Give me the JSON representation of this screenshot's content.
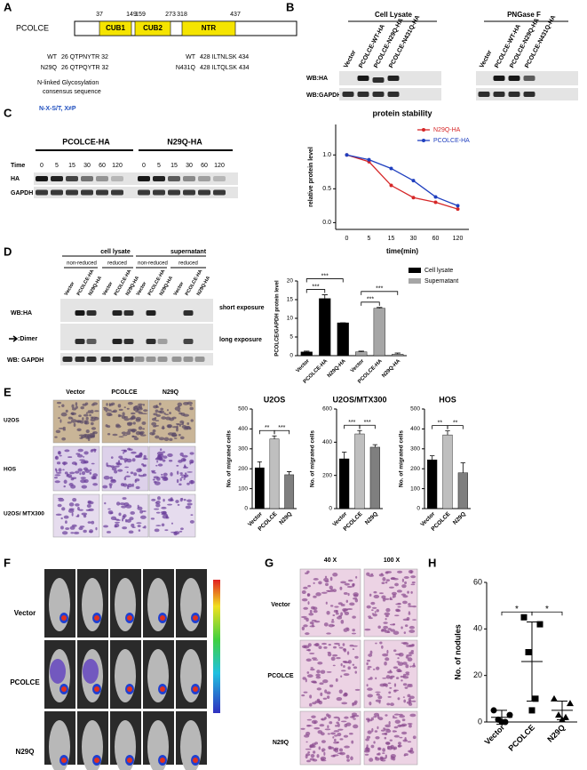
{
  "figure": {
    "panels": [
      "A",
      "B",
      "C",
      "D",
      "E",
      "F",
      "G",
      "H"
    ],
    "A": {
      "protein": "PCOLCE",
      "positions": [
        37,
        149,
        159,
        273,
        318,
        437
      ],
      "domains": [
        "CUB1",
        "CUB2",
        "NTR"
      ],
      "sequences": [
        {
          "label": "WT",
          "text": "26 QTPNYTR 32"
        },
        {
          "label": "N29Q",
          "text": "26 QTPQYTR 32"
        },
        {
          "label": "WT",
          "text": "428 ILTNLSK 434"
        },
        {
          "label": "N431Q",
          "text": "428 ILTQLSK 434"
        }
      ],
      "note": [
        "N-linked Glycosylation",
        "consensus sequence"
      ],
      "motif": "N-X-S/T, X≠P"
    },
    "B": {
      "groups": [
        "Cell Lysate",
        "PNGase F"
      ],
      "lanes": [
        "Vector",
        "PCOLCE-WT-HA",
        "PCOLCE-N29Q-HA",
        "PCOLCE-N431Q-HA",
        "Vector",
        "PCOLCE-WT-HA",
        "PCOLCE-N29Q-HA",
        "PCOLCE-N431Q-HA"
      ],
      "rows": [
        "WB:HA",
        "WB:GAPDH"
      ]
    },
    "C": {
      "groups": [
        "PCOLCE-HA",
        "N29Q-HA"
      ],
      "time_label": "Time",
      "times": [
        0,
        5,
        15,
        30,
        60,
        120,
        0,
        5,
        15,
        30,
        60,
        120
      ],
      "rows": [
        "HA",
        "GAPDH"
      ]
    },
    "D": {
      "groups": [
        "cell lysate",
        "supernatant"
      ],
      "conditions": [
        "non-reduced",
        "reduced",
        "non-reduced",
        "reduced"
      ],
      "lanes": [
        "Vector",
        "PCOLCE-HA",
        "N29Q-HA",
        "Vector",
        "PCOLCE-HA",
        "N29Q-HA",
        "Vector",
        "PCOLCE-HA",
        "N29Q-HA",
        "Vector",
        "PCOLCE-HA",
        "N29Q-HA"
      ],
      "rows": [
        "WB:HA",
        ":Dimer",
        "WB: GAPDH"
      ],
      "exposures": [
        "short exposure",
        "long exposure"
      ]
    },
    "E": {
      "columns": [
        "Vector",
        "PCOLCE",
        "N29Q"
      ],
      "rows": [
        "U2OS",
        "HOS",
        "U2OS/ MTX300"
      ]
    },
    "F": {
      "rows": [
        "Vector",
        "PCOLCE",
        "N29Q"
      ]
    },
    "G": {
      "columns": [
        "40 X",
        "100 X"
      ],
      "rows": [
        "Vector",
        "PCOLCE",
        "N29Q"
      ]
    }
  },
  "chart_data": [
    {
      "type": "line",
      "title": "protein stability",
      "xlabel": "time(min)",
      "ylabel": "relative protein level",
      "categories": [
        "0",
        "5",
        "15",
        "30",
        "60",
        "120"
      ],
      "series": [
        {
          "name": "N29Q-HA",
          "color": "#d62728",
          "values": [
            1.0,
            0.9,
            0.55,
            0.37,
            0.3,
            0.2
          ]
        },
        {
          "name": "PCOLCE-HA",
          "color": "#1f3fbf",
          "values": [
            1.0,
            0.93,
            0.8,
            0.62,
            0.38,
            0.25
          ]
        }
      ],
      "ylim": [
        -0.1,
        1.45
      ],
      "yticks": [
        {
          "value": 0,
          "label": "0.0"
        },
        {
          "value": 0.5,
          "label": "0.5"
        },
        {
          "value": 1,
          "label": "1.0"
        }
      ],
      "legend": "upper right"
    },
    {
      "type": "bar",
      "ylabel": "PCOLCE/GAPDH protein level",
      "categories": [
        "Vector",
        "PCOLCE-HA",
        "N29Q-HA",
        "Vector",
        "PCOLCE-HA",
        "N29Q-HA"
      ],
      "series": [
        {
          "name": "Cell lysate",
          "color": "#000000",
          "values": [
            1,
            15.3,
            8.8,
            null,
            null,
            null
          ],
          "errors": [
            0.2,
            1.0,
            0,
            null,
            null,
            null
          ]
        },
        {
          "name": "Supernatant",
          "color": "#a6a6a6",
          "values": [
            null,
            null,
            null,
            1,
            12.7,
            0.4
          ],
          "errors": [
            null,
            null,
            null,
            0.2,
            0.2,
            0.3
          ]
        }
      ],
      "ylim": [
        0,
        20
      ],
      "yticks": [
        0,
        5,
        10,
        15,
        20
      ],
      "legend": "right",
      "annotations": [
        {
          "text": "***",
          "between": [
            0,
            1
          ]
        },
        {
          "text": "***",
          "between": [
            0,
            2
          ]
        },
        {
          "text": "***",
          "between": [
            3,
            4
          ]
        },
        {
          "text": "***",
          "between": [
            3,
            5
          ]
        }
      ]
    },
    {
      "type": "bar",
      "title": "U2OS",
      "ylabel": "No. of migrated cells",
      "categories": [
        "Vector",
        "PCOLCE",
        "N29Q"
      ],
      "values": [
        205,
        350,
        170
      ],
      "errors": [
        30,
        15,
        15
      ],
      "colors": [
        "#000000",
        "#bfbfbf",
        "#7f7f7f"
      ],
      "ylim": [
        0,
        500
      ],
      "yticks": [
        0,
        100,
        200,
        300,
        400,
        500
      ],
      "annotations": [
        {
          "text": "**",
          "between": [
            0,
            1
          ]
        },
        {
          "text": "***",
          "between": [
            1,
            2
          ]
        }
      ]
    },
    {
      "type": "bar",
      "title": "U2OS/MTX300",
      "ylabel": "No. of migrated cells",
      "categories": [
        "Vector",
        "PCOLCE",
        "N29Q"
      ],
      "values": [
        300,
        450,
        370
      ],
      "errors": [
        40,
        20,
        15
      ],
      "colors": [
        "#000000",
        "#bfbfbf",
        "#7f7f7f"
      ],
      "ylim": [
        0,
        600
      ],
      "yticks": [
        0,
        200,
        400,
        600
      ],
      "annotations": [
        {
          "text": "***",
          "between": [
            0,
            1
          ]
        },
        {
          "text": "***",
          "between": [
            1,
            2
          ]
        }
      ]
    },
    {
      "type": "bar",
      "title": "HOS",
      "ylabel": "No. of migrated cells",
      "categories": [
        "Vector",
        "PCOLCE",
        "N29Q"
      ],
      "values": [
        245,
        370,
        180
      ],
      "errors": [
        20,
        20,
        50
      ],
      "colors": [
        "#000000",
        "#bfbfbf",
        "#7f7f7f"
      ],
      "ylim": [
        0,
        500
      ],
      "yticks": [
        0,
        100,
        200,
        300,
        400,
        500
      ],
      "annotations": [
        {
          "text": "**",
          "between": [
            0,
            1
          ]
        },
        {
          "text": "**",
          "between": [
            1,
            2
          ]
        }
      ]
    },
    {
      "type": "dot",
      "ylabel": "No. of nodules",
      "categories": [
        "Vector",
        "PCOLCE",
        "N29Q"
      ],
      "points": [
        [
          5,
          3,
          1,
          0,
          0
        ],
        [
          45,
          42,
          30,
          10,
          5
        ],
        [
          10,
          8,
          3,
          2,
          1
        ]
      ],
      "means": [
        2,
        26,
        5
      ],
      "errors": [
        3,
        17,
        4
      ],
      "markers": [
        "circle",
        "square",
        "triangle"
      ],
      "color": "#000000",
      "ylim": [
        0,
        60
      ],
      "yticks": [
        0,
        20,
        40,
        60
      ],
      "annotations": [
        {
          "text": "*",
          "between": [
            0,
            1
          ]
        },
        {
          "text": "*",
          "between": [
            1,
            2
          ]
        }
      ]
    }
  ]
}
